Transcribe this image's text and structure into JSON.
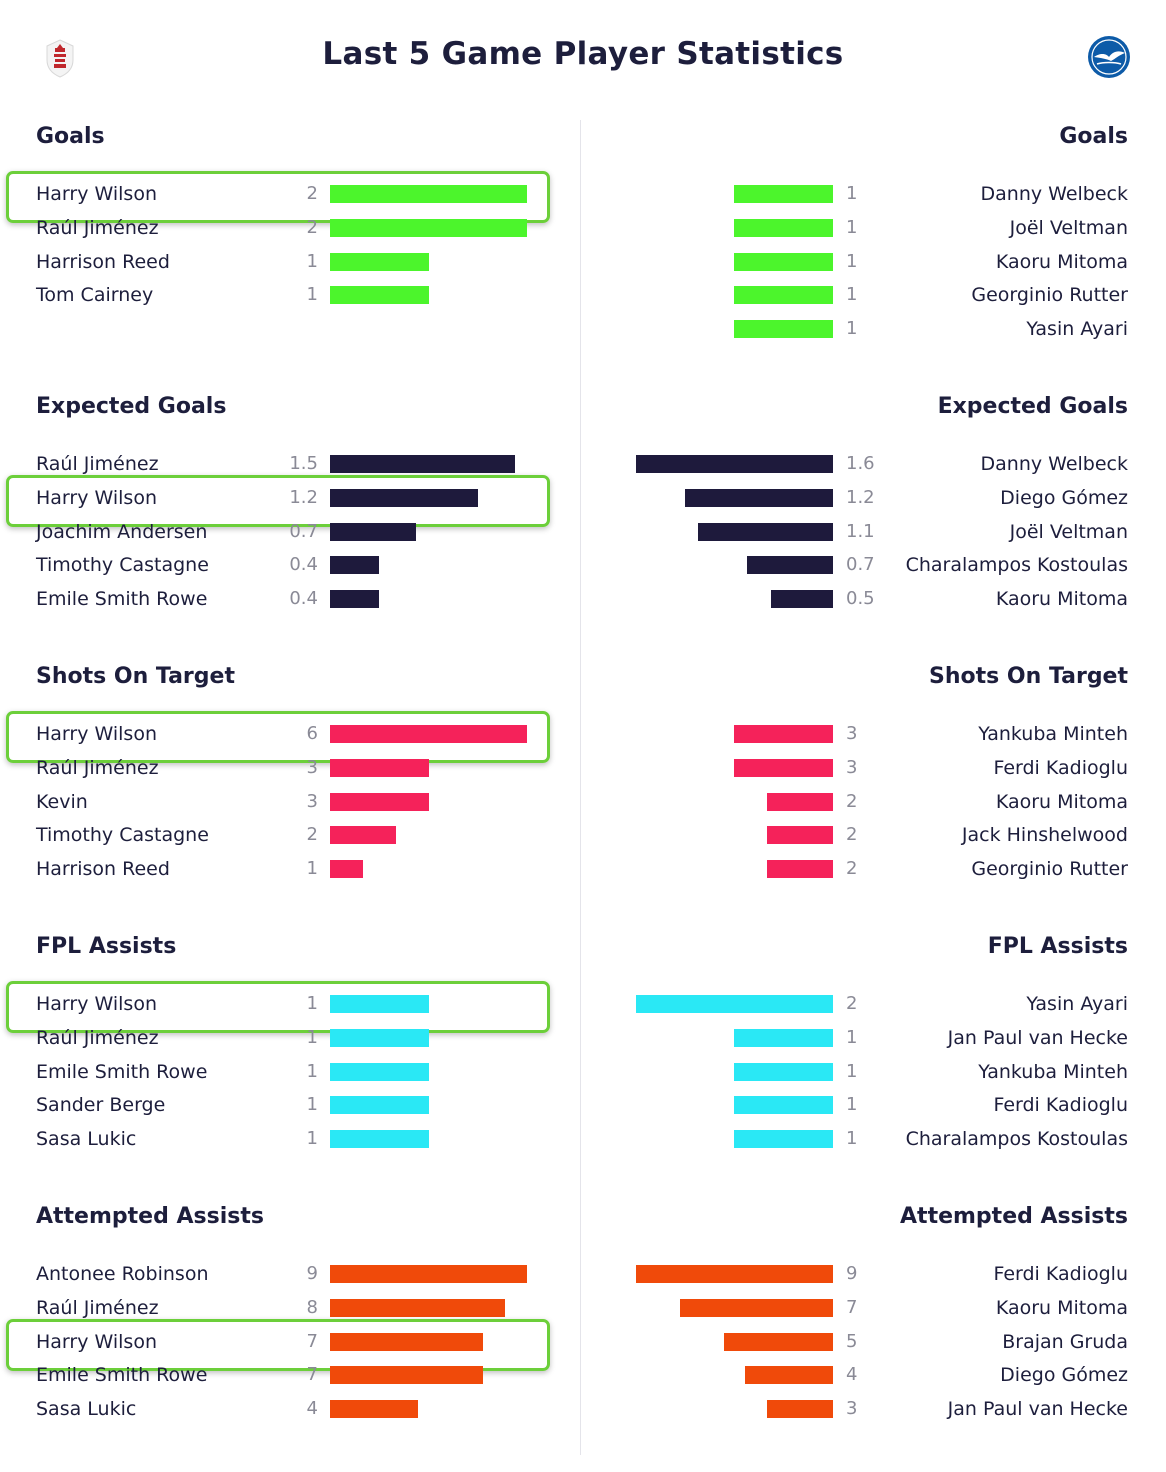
{
  "title": "Last 5 Game Player Statistics",
  "crests": {
    "left_icon": "fulham-crest-icon",
    "right_icon": "brighton-crest-icon"
  },
  "highlight_player": "Harry Wilson",
  "chart_data": [
    {
      "type": "bar",
      "title": "Goals",
      "color": "#4cf52c",
      "max": 2,
      "left": [
        {
          "name": "Harry Wilson",
          "value": 2,
          "label": "2"
        },
        {
          "name": "Raúl Jiménez",
          "value": 2,
          "label": "2"
        },
        {
          "name": "Harrison Reed",
          "value": 1,
          "label": "1"
        },
        {
          "name": "Tom Cairney",
          "value": 1,
          "label": "1"
        }
      ],
      "right": [
        {
          "name": "Danny Welbeck",
          "value": 1,
          "label": "1"
        },
        {
          "name": "Joël Veltman",
          "value": 1,
          "label": "1"
        },
        {
          "name": "Kaoru Mitoma",
          "value": 1,
          "label": "1"
        },
        {
          "name": "Georginio Rutter",
          "value": 1,
          "label": "1"
        },
        {
          "name": "Yasin Ayari",
          "value": 1,
          "label": "1"
        }
      ]
    },
    {
      "type": "bar",
      "title": "Expected Goals",
      "color": "#1e1a3c",
      "max": 1.6,
      "left": [
        {
          "name": "Raúl Jiménez",
          "value": 1.5,
          "label": "1.5"
        },
        {
          "name": "Harry Wilson",
          "value": 1.2,
          "label": "1.2"
        },
        {
          "name": "Joachim Andersen",
          "value": 0.7,
          "label": "0.7"
        },
        {
          "name": "Timothy Castagne",
          "value": 0.4,
          "label": "0.4"
        },
        {
          "name": "Emile Smith Rowe",
          "value": 0.4,
          "label": "0.4"
        }
      ],
      "right": [
        {
          "name": "Danny Welbeck",
          "value": 1.6,
          "label": "1.6"
        },
        {
          "name": "Diego Gómez",
          "value": 1.2,
          "label": "1.2"
        },
        {
          "name": "Joël Veltman",
          "value": 1.1,
          "label": "1.1"
        },
        {
          "name": "Charalampos Kostoulas",
          "value": 0.7,
          "label": "0.7"
        },
        {
          "name": "Kaoru Mitoma",
          "value": 0.5,
          "label": "0.5"
        }
      ]
    },
    {
      "type": "bar",
      "title": "Shots On Target",
      "color": "#f5225a",
      "max": 6,
      "left": [
        {
          "name": "Harry Wilson",
          "value": 6,
          "label": "6"
        },
        {
          "name": "Raúl Jiménez",
          "value": 3,
          "label": "3"
        },
        {
          "name": "Kevin",
          "value": 3,
          "label": "3"
        },
        {
          "name": "Timothy Castagne",
          "value": 2,
          "label": "2"
        },
        {
          "name": "Harrison Reed",
          "value": 1,
          "label": "1"
        }
      ],
      "right": [
        {
          "name": "Yankuba Minteh",
          "value": 3,
          "label": "3"
        },
        {
          "name": "Ferdi Kadioglu",
          "value": 3,
          "label": "3"
        },
        {
          "name": "Kaoru Mitoma",
          "value": 2,
          "label": "2"
        },
        {
          "name": "Jack Hinshelwood",
          "value": 2,
          "label": "2"
        },
        {
          "name": "Georginio Rutter",
          "value": 2,
          "label": "2"
        }
      ]
    },
    {
      "type": "bar",
      "title": "FPL Assists",
      "color": "#2ae8f5",
      "max": 2,
      "left": [
        {
          "name": "Harry Wilson",
          "value": 1,
          "label": "1"
        },
        {
          "name": "Raúl Jiménez",
          "value": 1,
          "label": "1"
        },
        {
          "name": "Emile Smith Rowe",
          "value": 1,
          "label": "1"
        },
        {
          "name": "Sander Berge",
          "value": 1,
          "label": "1"
        },
        {
          "name": "Sasa Lukic",
          "value": 1,
          "label": "1"
        }
      ],
      "right": [
        {
          "name": "Yasin Ayari",
          "value": 2,
          "label": "2"
        },
        {
          "name": "Jan Paul van Hecke",
          "value": 1,
          "label": "1"
        },
        {
          "name": "Yankuba Minteh",
          "value": 1,
          "label": "1"
        },
        {
          "name": "Ferdi Kadioglu",
          "value": 1,
          "label": "1"
        },
        {
          "name": "Charalampos Kostoulas",
          "value": 1,
          "label": "1"
        }
      ]
    },
    {
      "type": "bar",
      "title": "Attempted Assists",
      "color": "#f04a0a",
      "max": 9,
      "left": [
        {
          "name": "Antonee Robinson",
          "value": 9,
          "label": "9"
        },
        {
          "name": "Raúl Jiménez",
          "value": 8,
          "label": "8"
        },
        {
          "name": "Harry Wilson",
          "value": 7,
          "label": "7"
        },
        {
          "name": "Emile Smith Rowe",
          "value": 7,
          "label": "7"
        },
        {
          "name": "Sasa Lukic",
          "value": 4,
          "label": "4"
        }
      ],
      "right": [
        {
          "name": "Ferdi Kadioglu",
          "value": 9,
          "label": "9"
        },
        {
          "name": "Kaoru Mitoma",
          "value": 7,
          "label": "7"
        },
        {
          "name": "Brajan Gruda",
          "value": 5,
          "label": "5"
        },
        {
          "name": "Diego Gómez",
          "value": 4,
          "label": "4"
        },
        {
          "name": "Jan Paul van Hecke",
          "value": 3,
          "label": "3"
        }
      ]
    }
  ]
}
